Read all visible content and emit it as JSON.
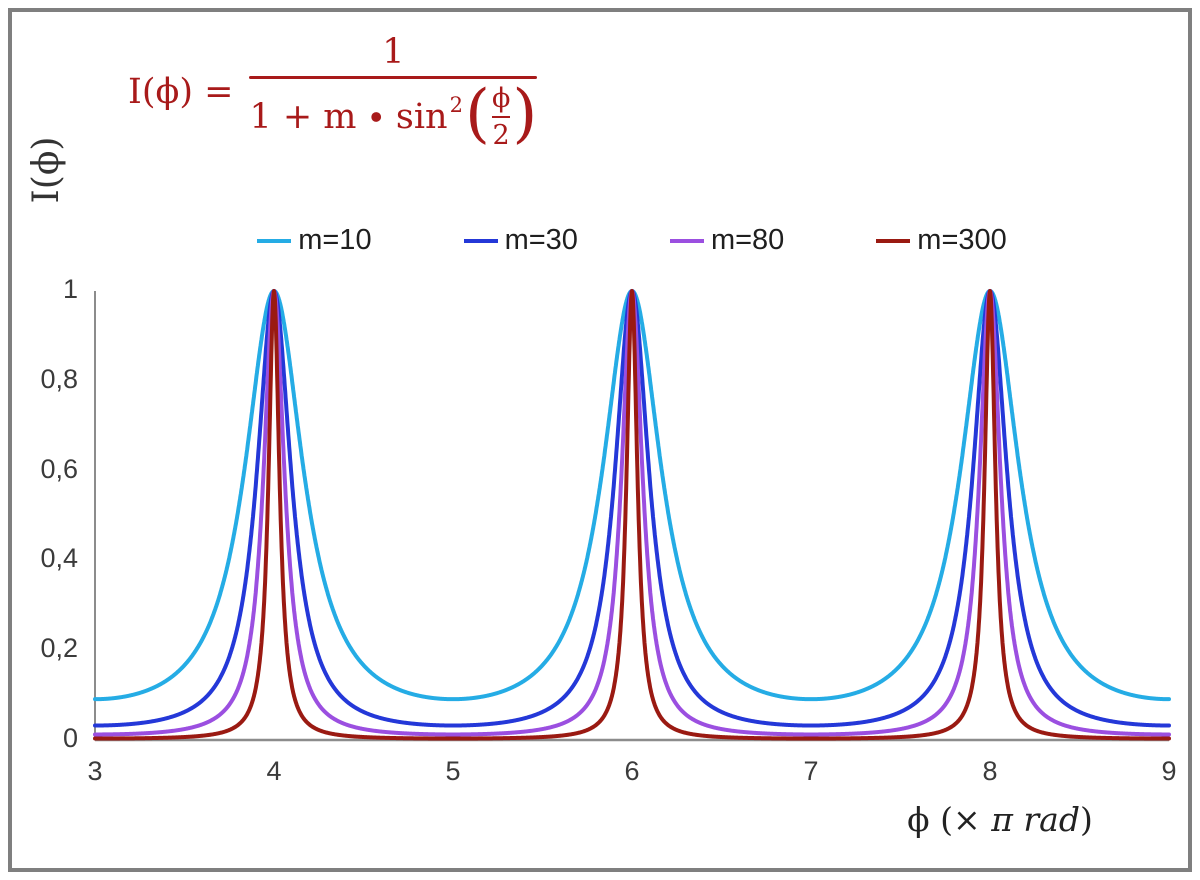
{
  "frame": {
    "border_color": "#7F7F7F",
    "background": "#FFFFFF"
  },
  "formula": {
    "color": "#A81A1A",
    "lhs": "I(ϕ) =",
    "numerator": "1",
    "den_prefix": "1 + m ∙ sin",
    "den_sup": "2",
    "open_paren": "(",
    "inner_num": "ϕ",
    "inner_den": "2",
    "close_paren": ")"
  },
  "axes": {
    "y_label": "I(ϕ)",
    "x_label_phi": "ϕ",
    "x_label_open": " (× ",
    "x_label_italic": "π rad",
    "x_label_close": ")",
    "axis_color": "#8C8C8C",
    "tick_color": "#3B3B3B"
  },
  "chart_data": {
    "type": "line",
    "title": "",
    "formula": "I(ϕ) = 1 / (1 + m·sin²(ϕ/2))",
    "function": "y = 1 / (1 + m·sin²(π·x/2)), x measured in units of π rad",
    "xlabel": "ϕ (× π rad)",
    "ylabel": "I(ϕ)",
    "x_range": [
      3,
      9
    ],
    "y_range": [
      0,
      1
    ],
    "grid": false,
    "legend_position": "top",
    "x_ticks": [
      {
        "value": 3,
        "label": "3"
      },
      {
        "value": 4,
        "label": "4"
      },
      {
        "value": 5,
        "label": "5"
      },
      {
        "value": 6,
        "label": "6"
      },
      {
        "value": 7,
        "label": "7"
      },
      {
        "value": 8,
        "label": "8"
      },
      {
        "value": 9,
        "label": "9"
      }
    ],
    "y_ticks": [
      {
        "value": 0,
        "label": "0"
      },
      {
        "value": 0.2,
        "label": "0,2"
      },
      {
        "value": 0.4,
        "label": "0,4"
      },
      {
        "value": 0.6,
        "label": "0,6"
      },
      {
        "value": 0.8,
        "label": "0,8"
      },
      {
        "value": 1,
        "label": "1"
      }
    ],
    "peaks_at_x": [
      4,
      6,
      8
    ],
    "peak_value": 1,
    "series": [
      {
        "name": "m=10",
        "m": 10,
        "color": "#25ACE5"
      },
      {
        "name": "m=30",
        "m": 30,
        "color": "#2438D8"
      },
      {
        "name": "m=80",
        "m": 80,
        "color": "#9B4FE0"
      },
      {
        "name": "m=300",
        "m": 300,
        "color": "#9A1A12"
      }
    ]
  }
}
